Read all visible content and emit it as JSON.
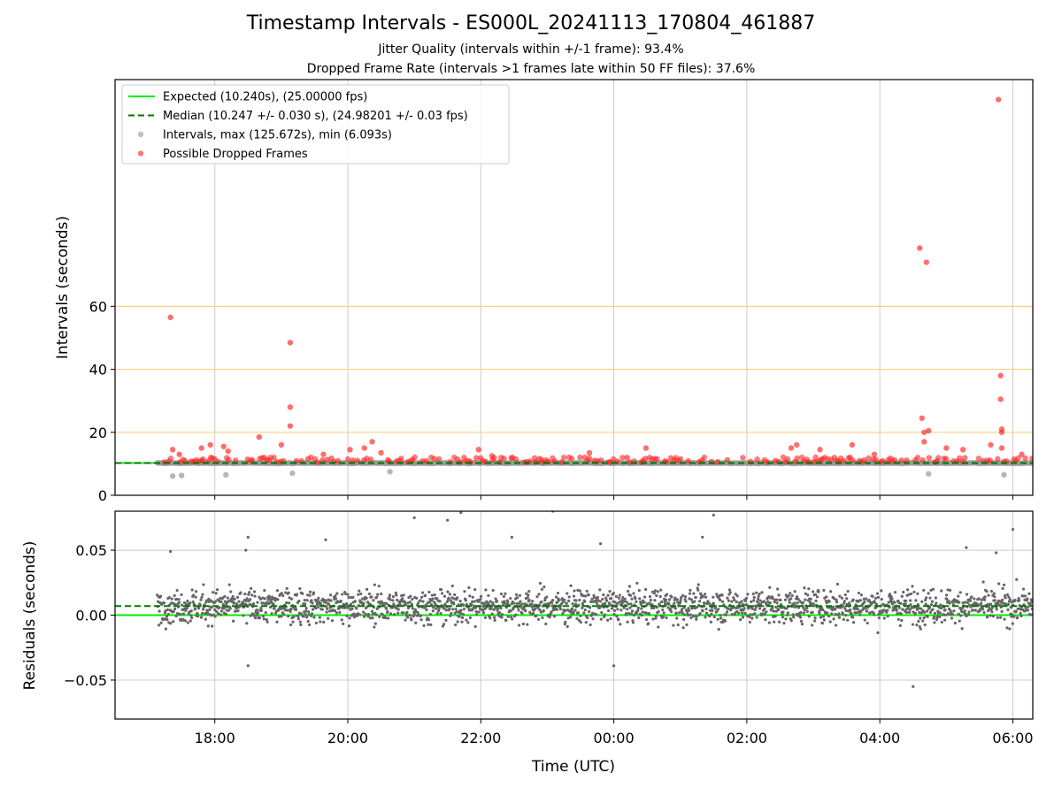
{
  "title": "Timestamp Intervals - ES000L_20241113_170804_461887",
  "subtitle_1": "Jitter Quality (intervals within +/-1 frame): 93.4%",
  "subtitle_2": "Dropped Frame Rate (intervals >1 frames late within 50 FF files): 37.6%",
  "colors": {
    "expected": "#00ee00",
    "median": "#007700",
    "interval_points": "#999999",
    "dropped_points": "#ff2222",
    "residual_points": "#666666",
    "threshold_lines": "#ffd27f",
    "grid": "#cccccc"
  },
  "chart_data": [
    {
      "type": "scatter",
      "ylabel": "Intervals (seconds)",
      "ylim": [
        0,
        132
      ],
      "yticks": [
        0,
        20,
        40,
        60
      ],
      "ytick_labels": [
        "0",
        "20",
        "40",
        "60"
      ],
      "xlim_hours": [
        16.5,
        30.3
      ],
      "threshold_lines": [
        20,
        40,
        60
      ],
      "grid": true,
      "legend_position": "top-left",
      "legend": [
        {
          "label": "Expected (10.240s), (25.00000 fps)",
          "kind": "solid-line",
          "color": "#00ee00"
        },
        {
          "label": "Median (10.247 +/- 0.030 s), (24.98201 +/- 0.03 fps)",
          "kind": "dashed-line",
          "color": "#007700"
        },
        {
          "label": "Intervals, max (125.672s), min (6.093s)",
          "kind": "dot",
          "color": "#999999"
        },
        {
          "label": "Possible Dropped Frames",
          "kind": "dot",
          "color": "#ff2222"
        }
      ],
      "expected_value": 10.24,
      "median_value": 10.247,
      "dropped_outliers": [
        {
          "t": "17:20",
          "y": 56.5
        },
        {
          "t": "17:22",
          "y": 14.5
        },
        {
          "t": "17:28",
          "y": 13.0
        },
        {
          "t": "17:48",
          "y": 15.0
        },
        {
          "t": "17:56",
          "y": 16.0
        },
        {
          "t": "18:08",
          "y": 15.5
        },
        {
          "t": "18:12",
          "y": 14.0
        },
        {
          "t": "18:40",
          "y": 18.5
        },
        {
          "t": "19:00",
          "y": 16.0
        },
        {
          "t": "19:08",
          "y": 48.5
        },
        {
          "t": "19:08",
          "y": 28.0
        },
        {
          "t": "19:08",
          "y": 22.0
        },
        {
          "t": "19:38",
          "y": 13.0
        },
        {
          "t": "20:02",
          "y": 14.5
        },
        {
          "t": "20:15",
          "y": 15.0
        },
        {
          "t": "20:22",
          "y": 17.0
        },
        {
          "t": "20:30",
          "y": 13.5
        },
        {
          "t": "21:58",
          "y": 14.5
        },
        {
          "t": "22:10",
          "y": 12.5
        },
        {
          "t": "23:38",
          "y": 13.5
        },
        {
          "t": "00:12",
          "y": 12.0
        },
        {
          "t": "00:29",
          "y": 15.0
        },
        {
          "t": "02:40",
          "y": 15.0
        },
        {
          "t": "02:45",
          "y": 16.0
        },
        {
          "t": "03:06",
          "y": 14.5
        },
        {
          "t": "03:35",
          "y": 16.0
        },
        {
          "t": "03:55",
          "y": 13.0
        },
        {
          "t": "04:36",
          "y": 78.5
        },
        {
          "t": "04:38",
          "y": 24.5
        },
        {
          "t": "04:40",
          "y": 20.0
        },
        {
          "t": "04:40",
          "y": 17.0
        },
        {
          "t": "04:42",
          "y": 74.0
        },
        {
          "t": "04:44",
          "y": 20.5
        },
        {
          "t": "05:00",
          "y": 15.0
        },
        {
          "t": "05:15",
          "y": 14.5
        },
        {
          "t": "05:40",
          "y": 16.0
        },
        {
          "t": "05:47",
          "y": 125.672
        },
        {
          "t": "05:49",
          "y": 38.0
        },
        {
          "t": "05:49",
          "y": 30.5
        },
        {
          "t": "05:50",
          "y": 21.0
        },
        {
          "t": "05:50",
          "y": 20.0
        },
        {
          "t": "05:50",
          "y": 15.0
        },
        {
          "t": "06:08",
          "y": 13.0
        }
      ],
      "low_interval_points": [
        {
          "t": "17:22",
          "y": 6.093
        },
        {
          "t": "17:30",
          "y": 6.3
        },
        {
          "t": "18:10",
          "y": 6.5
        },
        {
          "t": "19:10",
          "y": 7.0
        },
        {
          "t": "20:38",
          "y": 7.5
        },
        {
          "t": "04:44",
          "y": 6.8
        },
        {
          "t": "05:52",
          "y": 6.5
        }
      ]
    },
    {
      "type": "scatter",
      "xlabel": "Time (UTC)",
      "ylabel": "Residuals (seconds)",
      "ylim": [
        -0.08,
        0.08
      ],
      "yticks": [
        -0.05,
        0,
        0.05
      ],
      "ytick_labels": [
        "−0.05",
        "0.00",
        "0.05"
      ],
      "xtick_labels": [
        "18:00",
        "20:00",
        "22:00",
        "00:00",
        "02:00",
        "04:00",
        "06:00"
      ],
      "xtick_hours": [
        18,
        20,
        22,
        24,
        26,
        28,
        30
      ],
      "expected_residual": 0.0,
      "median_residual": 0.007,
      "grid": true,
      "residual_outliers": [
        {
          "t": "17:20",
          "y": 0.049
        },
        {
          "t": "18:30",
          "y": 0.06
        },
        {
          "t": "18:28",
          "y": 0.05
        },
        {
          "t": "18:30",
          "y": -0.039
        },
        {
          "t": "19:40",
          "y": 0.058
        },
        {
          "t": "21:00",
          "y": 0.075
        },
        {
          "t": "21:30",
          "y": 0.073
        },
        {
          "t": "21:42",
          "y": 0.079
        },
        {
          "t": "22:28",
          "y": 0.06
        },
        {
          "t": "23:05",
          "y": 0.08
        },
        {
          "t": "23:48",
          "y": 0.055
        },
        {
          "t": "00:00",
          "y": -0.039
        },
        {
          "t": "01:20",
          "y": 0.06
        },
        {
          "t": "01:30",
          "y": 0.077
        },
        {
          "t": "04:30",
          "y": -0.055
        },
        {
          "t": "05:18",
          "y": 0.052
        },
        {
          "t": "05:45",
          "y": 0.048
        },
        {
          "t": "06:00",
          "y": 0.066
        }
      ]
    }
  ]
}
